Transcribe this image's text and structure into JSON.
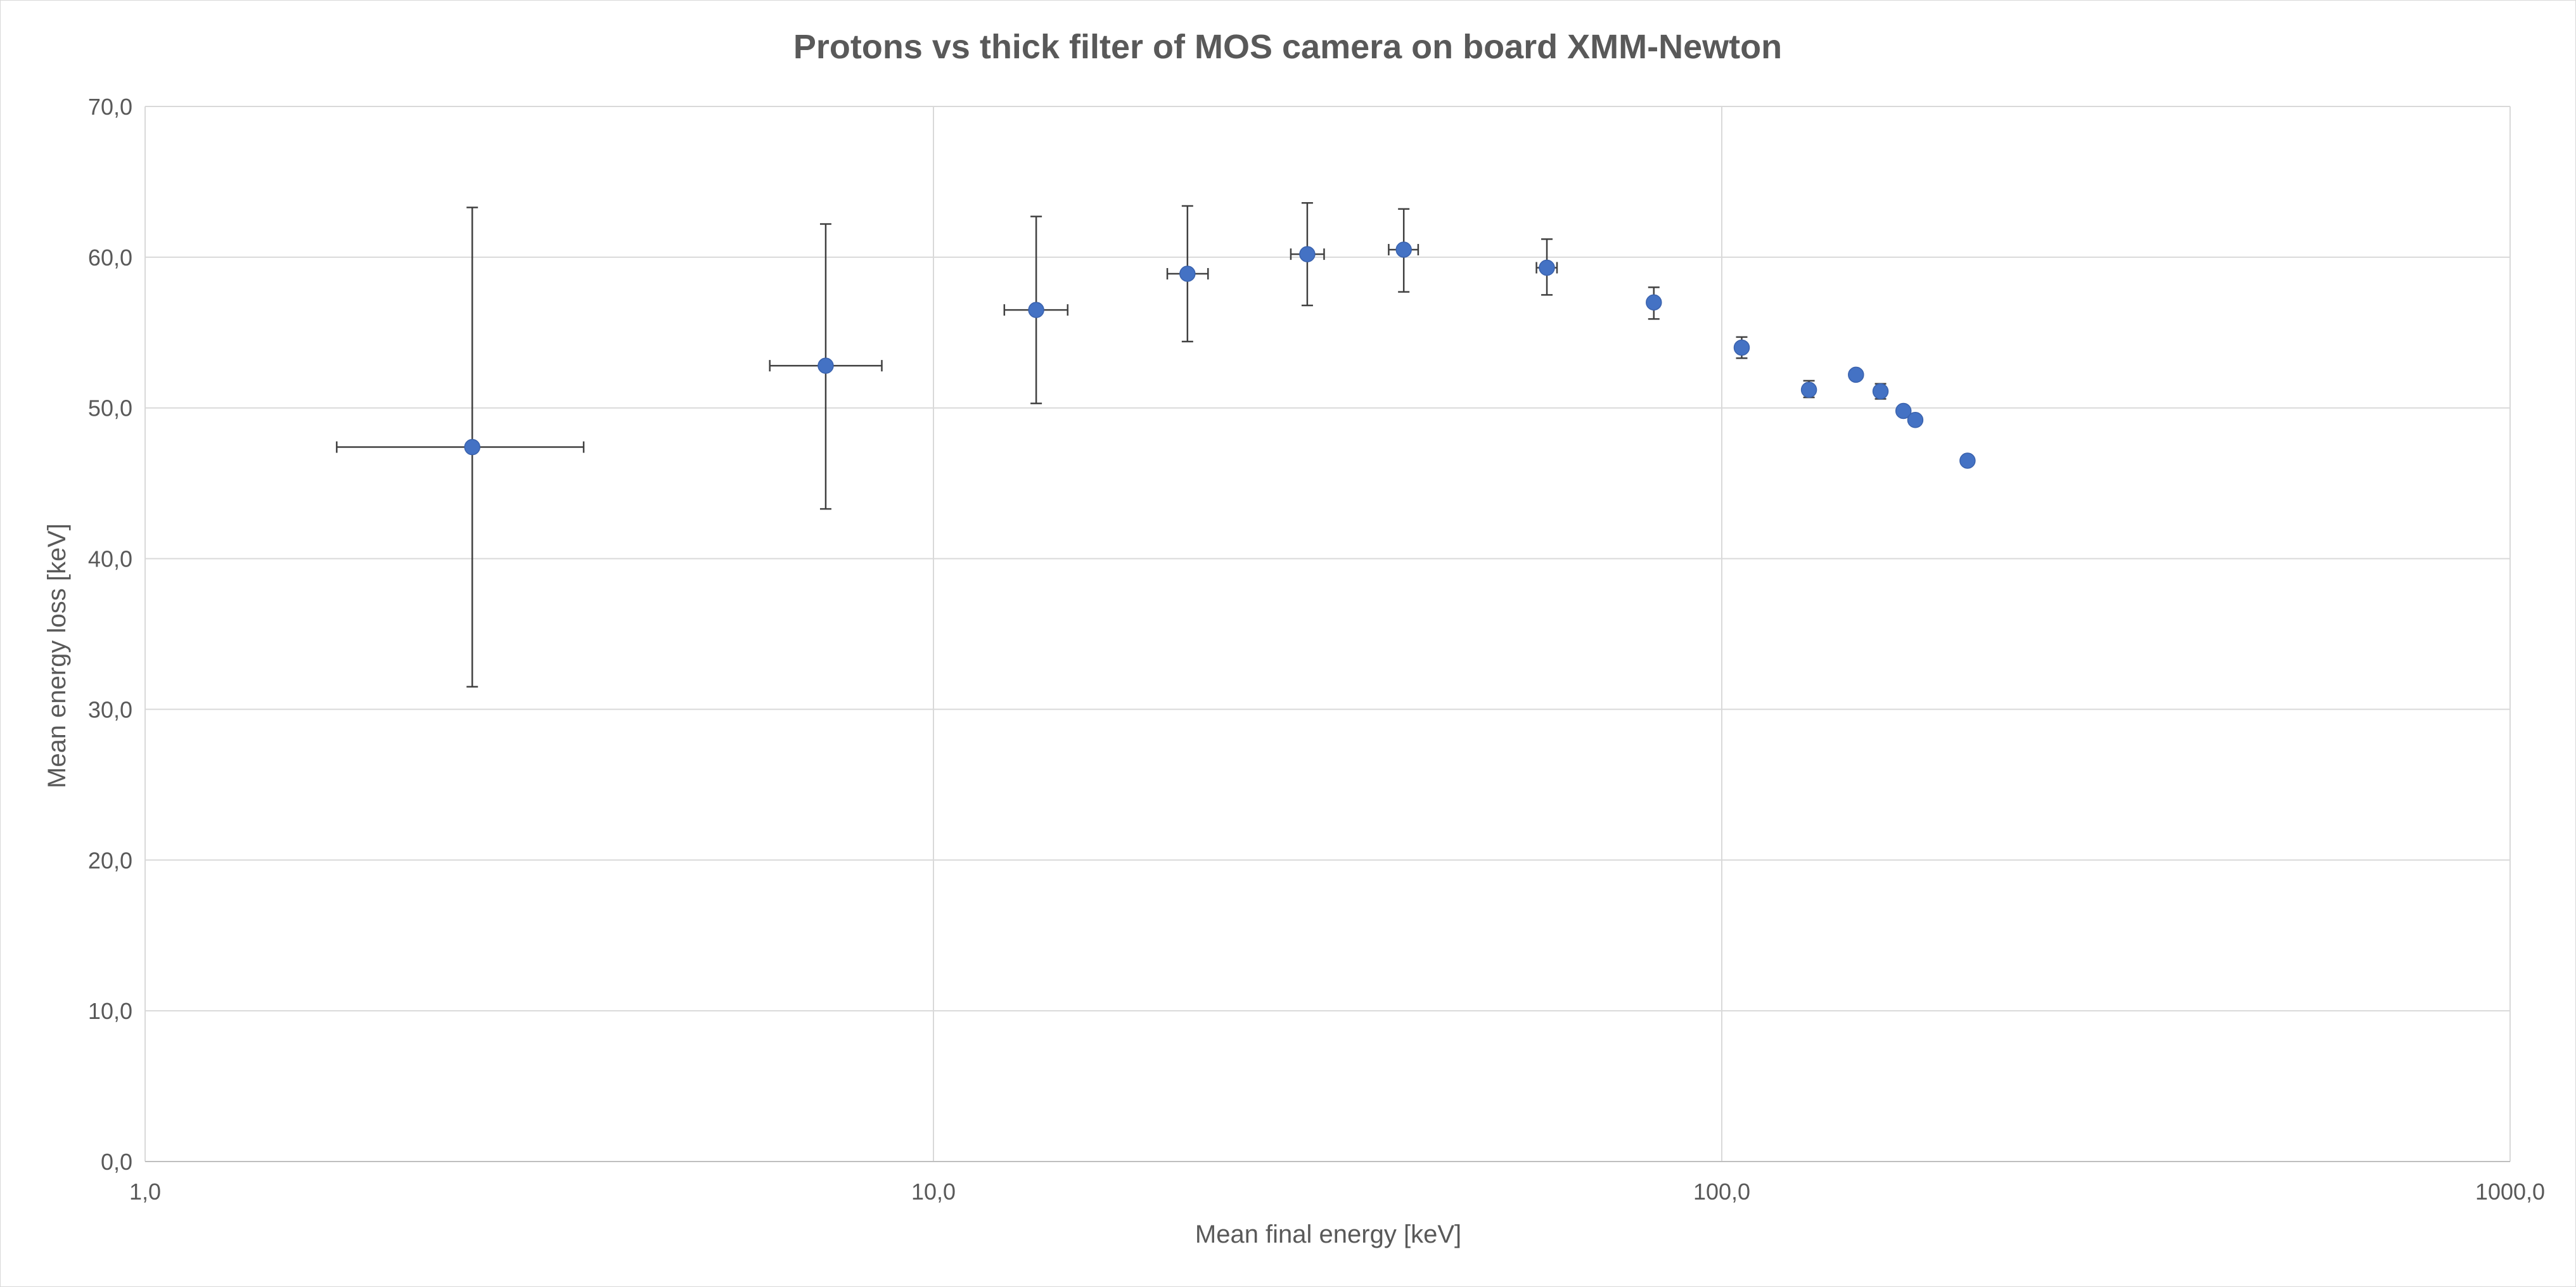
{
  "chart_data": {
    "type": "scatter",
    "title": "Protons vs thick filter of MOS camera on board XMM-Newton",
    "xlabel": "Mean final energy [keV]",
    "ylabel": "Mean energy loss [keV]",
    "x_scale": "log",
    "xlim": [
      1,
      1000
    ],
    "ylim": [
      0,
      70
    ],
    "x_ticks": [
      1,
      10,
      100,
      1000
    ],
    "x_tick_labels": [
      "1,0",
      "10,0",
      "100,0",
      "1000,0"
    ],
    "y_ticks": [
      0,
      10,
      20,
      30,
      40,
      50,
      60,
      70
    ],
    "y_tick_labels": [
      "0,0",
      "10,0",
      "20,0",
      "30,0",
      "40,0",
      "50,0",
      "60,0",
      "70,0"
    ],
    "grid": true,
    "legend": "none",
    "colors": {
      "marker": "#4472c4",
      "error_bar": "#404040",
      "grid": "#d9d9d9",
      "text": "#595959"
    },
    "points": [
      {
        "x": 2.6,
        "y": 47.4,
        "x_lo": 1.75,
        "x_hi": 3.6,
        "y_lo": 31.5,
        "y_hi": 63.3
      },
      {
        "x": 7.3,
        "y": 52.8,
        "x_lo": 6.2,
        "x_hi": 8.6,
        "y_lo": 43.3,
        "y_hi": 62.2
      },
      {
        "x": 13.5,
        "y": 56.5,
        "x_lo": 12.3,
        "x_hi": 14.8,
        "y_lo": 50.3,
        "y_hi": 62.7
      },
      {
        "x": 21.0,
        "y": 58.9,
        "x_lo": 19.8,
        "x_hi": 22.3,
        "y_lo": 54.4,
        "y_hi": 63.4
      },
      {
        "x": 29.8,
        "y": 60.2,
        "x_lo": 28.4,
        "x_hi": 31.3,
        "y_lo": 56.8,
        "y_hi": 63.6
      },
      {
        "x": 39.5,
        "y": 60.5,
        "x_lo": 37.8,
        "x_hi": 41.2,
        "y_lo": 57.7,
        "y_hi": 63.2
      },
      {
        "x": 60.0,
        "y": 59.3,
        "x_lo": 58.2,
        "x_hi": 61.8,
        "y_lo": 57.5,
        "y_hi": 61.2
      },
      {
        "x": 82.0,
        "y": 57.0,
        "x_lo": 81.0,
        "x_hi": 83.0,
        "y_lo": 55.9,
        "y_hi": 58.0
      },
      {
        "x": 106.0,
        "y": 54.0,
        "x_lo": 105.5,
        "x_hi": 106.5,
        "y_lo": 53.3,
        "y_hi": 54.7
      },
      {
        "x": 129.0,
        "y": 51.2,
        "x_lo": 128.5,
        "x_hi": 129.5,
        "y_lo": 50.7,
        "y_hi": 51.8
      },
      {
        "x": 148.0,
        "y": 52.2,
        "x_lo": 147.5,
        "x_hi": 148.5,
        "y_lo": 51.9,
        "y_hi": 52.5
      },
      {
        "x": 159.0,
        "y": 51.1,
        "x_lo": 158.5,
        "x_hi": 159.5,
        "y_lo": 50.6,
        "y_hi": 51.6
      },
      {
        "x": 170.0,
        "y": 49.8,
        "x_lo": 169.5,
        "x_hi": 170.5,
        "y_lo": 49.5,
        "y_hi": 50.1
      },
      {
        "x": 176.0,
        "y": 49.2,
        "x_lo": 175.5,
        "x_hi": 176.5,
        "y_lo": 49.0,
        "y_hi": 49.4
      },
      {
        "x": 205.0,
        "y": 46.5,
        "x_lo": 205.0,
        "x_hi": 205.0,
        "y_lo": 46.4,
        "y_hi": 46.6
      }
    ]
  }
}
